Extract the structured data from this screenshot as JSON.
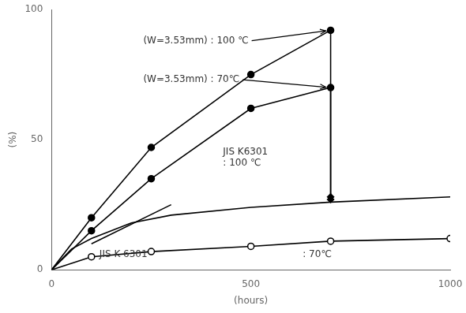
{
  "chart_data": {
    "type": "line",
    "xlabel": "(hours)",
    "ylabel": "(%)",
    "xlim": [
      0,
      1000
    ],
    "ylim": [
      0,
      100
    ],
    "xticks": [
      0,
      500,
      1000
    ],
    "yticks": [
      0,
      50,
      100
    ],
    "grid": false,
    "color": "#000000",
    "series": [
      {
        "x": [
          0,
          100,
          250,
          500,
          700,
          1000
        ],
        "values": [
          0,
          5,
          7,
          9,
          11,
          12
        ],
        "marker": "circle_open",
        "line_style": "solid"
      },
      {
        "x": [
          0,
          50,
          100,
          200,
          300,
          500,
          700,
          1000
        ],
        "values": [
          0,
          8,
          12,
          18,
          21,
          24,
          26,
          28
        ],
        "marker": "none",
        "line_style": "solid"
      },
      {
        "x": [
          100,
          300
        ],
        "values": [
          10,
          25
        ],
        "marker": "none",
        "line_style": "solid"
      },
      {
        "x": [
          0,
          100,
          250,
          500,
          700
        ],
        "values": [
          0,
          15,
          35,
          62,
          70
        ],
        "marker": "circle",
        "line_style": "solid"
      },
      {
        "x": [
          700,
          700
        ],
        "values": [
          70,
          27
        ],
        "marker": "none",
        "line_style": "solid"
      },
      {
        "x": [
          700
        ],
        "values": [
          27
        ],
        "marker": "diamond",
        "line_style": "none"
      },
      {
        "x": [
          0,
          100,
          250,
          500,
          700
        ],
        "values": [
          0,
          20,
          47,
          75,
          92
        ],
        "marker": "circle",
        "line_style": "solid"
      },
      {
        "x": [
          700,
          700
        ],
        "values": [
          92,
          28
        ],
        "marker": "none",
        "line_style": "solid"
      },
      {
        "x": [
          700
        ],
        "values": [
          28
        ],
        "marker": "diamond",
        "line_style": "none"
      }
    ],
    "annotations": [
      {
        "text": "(W=3.53mm) : 100 ℃",
        "x": 230,
        "y": 88,
        "arrow_x": 700,
        "arrow_y": 92
      },
      {
        "text": "(W=3.53mm) : 70℃",
        "x": 230,
        "y": 73,
        "arrow_x": 700,
        "arrow_y": 70
      },
      {
        "text": "JIS K6301\n: 100 ℃",
        "x": 430,
        "y": 43
      },
      {
        "text": "JIS K 6301",
        "x": 120,
        "y": 4
      },
      {
        "text": ": 70℃",
        "x": 630,
        "y": 4
      }
    ]
  }
}
